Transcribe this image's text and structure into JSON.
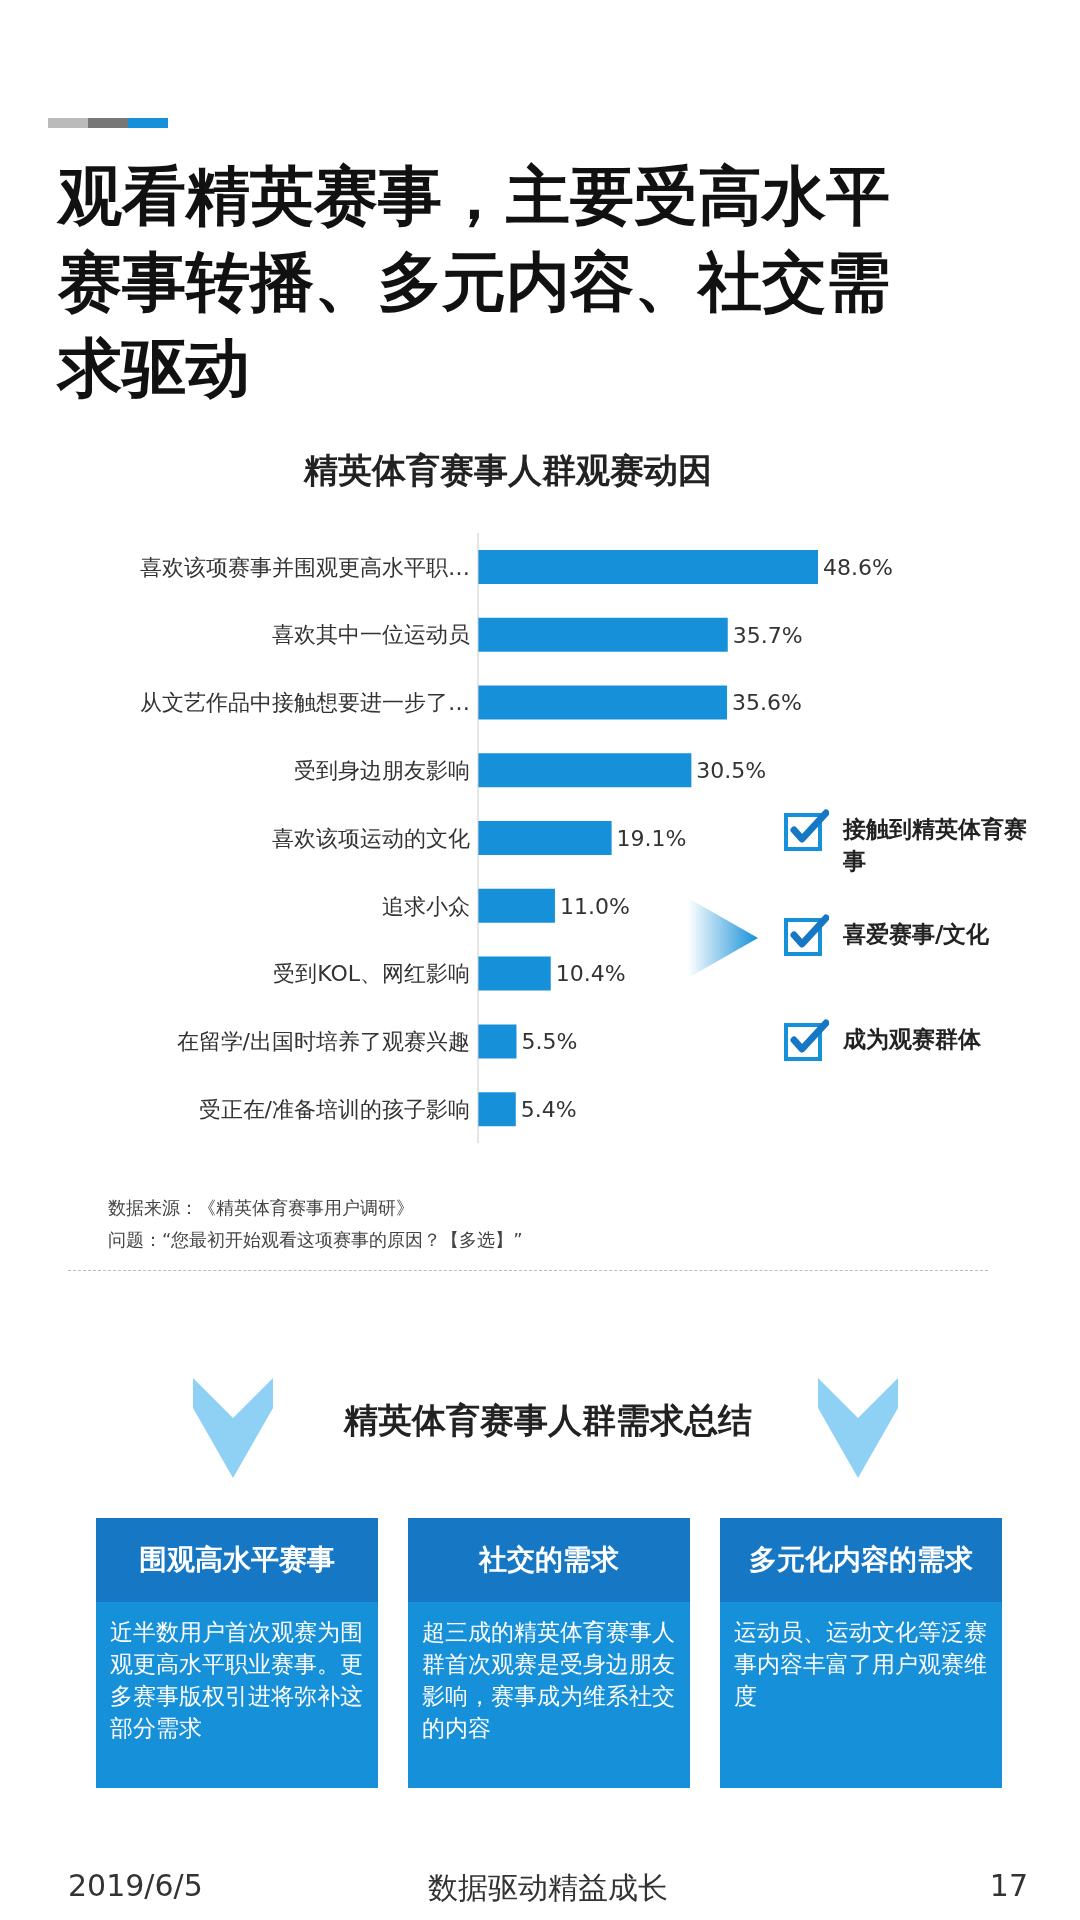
{
  "chart_data": [
    {
      "type": "bar",
      "orientation": "horizontal",
      "title": "精英体育赛事人群观赛动因",
      "categories": [
        "喜欢该项赛事并围观更高水平职…",
        "喜欢其中一位运动员",
        "从文艺作品中接触想要进一步了…",
        "受到身边朋友影响",
        "喜欢该项运动的文化",
        "追求小众",
        "受到KOL、网红影响",
        "在留学/出国时培养了观赛兴趣",
        "受正在/准备培训的孩子影响"
      ],
      "values": [
        48.6,
        35.7,
        35.6,
        30.5,
        19.1,
        11.0,
        10.4,
        5.5,
        5.4
      ],
      "value_labels": [
        "48.6%",
        "35.7%",
        "35.6%",
        "30.5%",
        "19.1%",
        "11.0%",
        "10.4%",
        "5.5%",
        "5.4%"
      ],
      "color": "#1690d8",
      "annotations": [
        "观看精英赛事，主要受高水平赛事转播、多元内容、社交需求驱动",
        "数据来源：《精英体育赛事用户调研》",
        "问题：“您最初开始观看这项赛事的原因？【多选】”",
        "接触到精英体育赛事",
        "喜爱赛事/文化",
        "成为观赛群体"
      ]
    },
    {
      "type": "other",
      "title": "精英体育赛事人群需求总结",
      "categories": [
        "围观高水平赛事",
        "社交的需求",
        "多元化内容的需求"
      ],
      "annotations": [
        "近半数用户首次观赛为围观更高水平职业赛事。更多赛事版权引进将弥补这部分需求",
        "超三成的精英体育赛事人群首次观赛是受身边朋友影响，赛事成为维系社交的内容",
        "运动员、运动文化等泛赛事内容丰富了用户观赛维度",
        "2019/6/5",
        "数据驱动精益成长",
        "17"
      ]
    }
  ]
}
